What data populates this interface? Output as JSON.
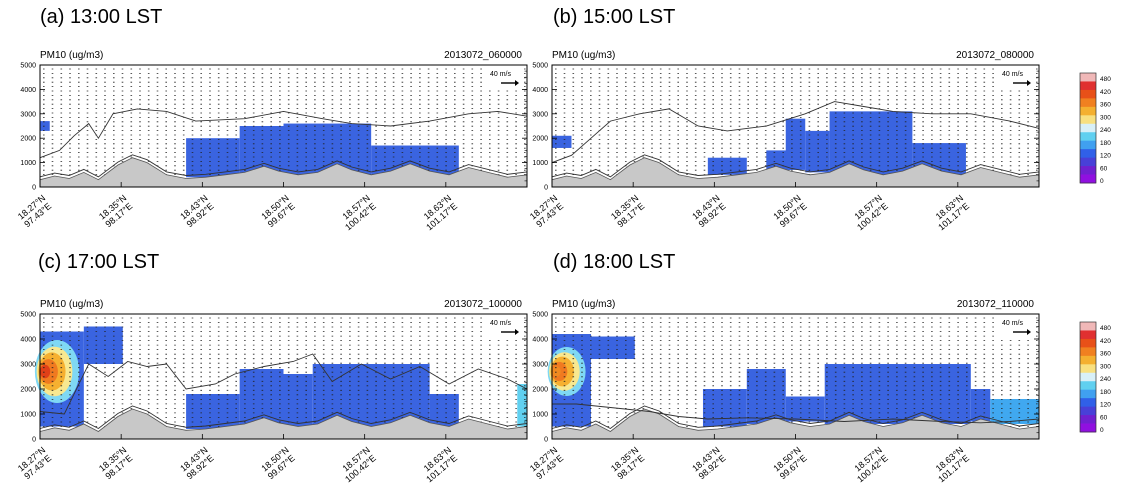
{
  "panels": [
    {
      "label": "(a) 13:00 LST",
      "var_label": "PM10 (ug/m3)",
      "timestamp": "2013072_060000",
      "ref_vector": "40 m/s"
    },
    {
      "label": "(b) 15:00 LST",
      "var_label": "PM10 (ug/m3)",
      "timestamp": "2013072_080000",
      "ref_vector": "40 m/s"
    },
    {
      "label": "(c) 17:00 LST",
      "var_label": "PM10 (ug/m3)",
      "timestamp": "2013072_100000",
      "ref_vector": "40 m/s"
    },
    {
      "label": "(d) 18:00 LST",
      "var_label": "PM10 (ug/m3)",
      "timestamp": "2013072_110000",
      "ref_vector": "40 m/s"
    }
  ],
  "colorbar": {
    "ticks": [
      "480",
      "420",
      "360",
      "300",
      "240",
      "180",
      "120",
      "60",
      "0"
    ],
    "colors": [
      "#f0b8b8",
      "#e03030",
      "#e85018",
      "#f08020",
      "#f4b030",
      "#f8e080",
      "#d8f0f8",
      "#60d0f0",
      "#40a0f0",
      "#3060e8",
      "#4840d8",
      "#7020d0",
      "#9010e0"
    ]
  },
  "chart_data": [
    {
      "type": "heatmap",
      "title": "(a) 13:00 LST",
      "variable": "PM10 (ug/m3)",
      "timestamp": "2013072_060000",
      "y_ticks": [
        0,
        1000,
        2000,
        3000,
        4000,
        5000
      ],
      "ylim": [
        0,
        5000
      ],
      "x_tick_labels": [
        [
          "18.27°N",
          "97.43°E"
        ],
        [
          "18.35°N",
          "98.17°E"
        ],
        [
          "18.43°N",
          "98.92°E"
        ],
        [
          "18.50°N",
          "99.67°E"
        ],
        [
          "18.57°N",
          "100.42°E"
        ],
        [
          "18.63°N",
          "101.17°E"
        ]
      ],
      "ref_vector": "40 m/s",
      "pm10_regions": [
        {
          "x": [
            0.0,
            0.02
          ],
          "y": [
            2300,
            2700
          ],
          "value": 100
        },
        {
          "x": [
            0.3,
            0.41
          ],
          "y": [
            400,
            2000
          ],
          "value": 100
        },
        {
          "x": [
            0.41,
            0.5
          ],
          "y": [
            500,
            2500
          ],
          "value": 100
        },
        {
          "x": [
            0.5,
            0.68
          ],
          "y": [
            400,
            2600
          ],
          "value": 100
        },
        {
          "x": [
            0.68,
            0.86
          ],
          "y": [
            400,
            1700
          ],
          "value": 100
        }
      ],
      "pbl_height": [
        [
          0.0,
          1200
        ],
        [
          0.04,
          1500
        ],
        [
          0.07,
          2100
        ],
        [
          0.1,
          2600
        ],
        [
          0.12,
          2000
        ],
        [
          0.15,
          3000
        ],
        [
          0.2,
          3200
        ],
        [
          0.26,
          3100
        ],
        [
          0.32,
          2700
        ],
        [
          0.42,
          2800
        ],
        [
          0.5,
          3100
        ],
        [
          0.58,
          2800
        ],
        [
          0.64,
          2600
        ],
        [
          0.72,
          2500
        ],
        [
          0.8,
          2700
        ],
        [
          0.88,
          3000
        ],
        [
          0.94,
          3100
        ],
        [
          1.0,
          2900
        ]
      ]
    },
    {
      "type": "heatmap",
      "title": "(b) 15:00 LST",
      "variable": "PM10 (ug/m3)",
      "timestamp": "2013072_080000",
      "y_ticks": [
        0,
        1000,
        2000,
        3000,
        4000,
        5000
      ],
      "ylim": [
        0,
        5000
      ],
      "x_tick_labels": [
        [
          "18.27°N",
          "97.43°E"
        ],
        [
          "18.35°N",
          "98.17°E"
        ],
        [
          "18.43°N",
          "98.92°E"
        ],
        [
          "18.50°N",
          "99.67°E"
        ],
        [
          "18.57°N",
          "100.42°E"
        ],
        [
          "18.63°N",
          "101.17°E"
        ]
      ],
      "ref_vector": "40 m/s",
      "pm10_regions": [
        {
          "x": [
            0.0,
            0.04
          ],
          "y": [
            1600,
            2100
          ],
          "value": 100
        },
        {
          "x": [
            0.32,
            0.4
          ],
          "y": [
            500,
            1200
          ],
          "value": 100
        },
        {
          "x": [
            0.44,
            0.49
          ],
          "y": [
            700,
            1500
          ],
          "value": 100
        },
        {
          "x": [
            0.48,
            0.52
          ],
          "y": [
            700,
            2800
          ],
          "value": 100
        },
        {
          "x": [
            0.52,
            0.57
          ],
          "y": [
            600,
            2300
          ],
          "value": 100
        },
        {
          "x": [
            0.57,
            0.74
          ],
          "y": [
            500,
            3100
          ],
          "value": 100
        },
        {
          "x": [
            0.74,
            0.85
          ],
          "y": [
            400,
            1800
          ],
          "value": 100
        }
      ],
      "pbl_height": [
        [
          0.0,
          1000
        ],
        [
          0.04,
          1300
        ],
        [
          0.08,
          2000
        ],
        [
          0.12,
          2700
        ],
        [
          0.18,
          3000
        ],
        [
          0.24,
          3200
        ],
        [
          0.3,
          2500
        ],
        [
          0.36,
          2300
        ],
        [
          0.44,
          2500
        ],
        [
          0.52,
          3000
        ],
        [
          0.58,
          3500
        ],
        [
          0.64,
          3300
        ],
        [
          0.7,
          3100
        ],
        [
          0.78,
          3000
        ],
        [
          0.86,
          3000
        ],
        [
          0.94,
          2700
        ],
        [
          1.0,
          2400
        ]
      ]
    },
    {
      "type": "heatmap",
      "title": "(c) 17:00 LST",
      "variable": "PM10 (ug/m3)",
      "timestamp": "2013072_100000",
      "y_ticks": [
        0,
        1000,
        2000,
        3000,
        4000,
        5000
      ],
      "ylim": [
        0,
        5000
      ],
      "x_tick_labels": [
        [
          "18.27°N",
          "97.43°E"
        ],
        [
          "18.35°N",
          "98.17°E"
        ],
        [
          "18.43°N",
          "98.92°E"
        ],
        [
          "18.50°N",
          "99.67°E"
        ],
        [
          "18.57°N",
          "100.42°E"
        ],
        [
          "18.63°N",
          "101.17°E"
        ]
      ],
      "ref_vector": "40 m/s",
      "pm10_regions": [
        {
          "x": [
            0.0,
            0.09
          ],
          "y": [
            500,
            4300
          ],
          "value": 120
        },
        {
          "x": [
            0.09,
            0.17
          ],
          "y": [
            3000,
            4500
          ],
          "value": 100
        },
        {
          "x": [
            0.3,
            0.41
          ],
          "y": [
            400,
            1800
          ],
          "value": 100
        },
        {
          "x": [
            0.41,
            0.5
          ],
          "y": [
            400,
            2800
          ],
          "value": 100
        },
        {
          "x": [
            0.5,
            0.56
          ],
          "y": [
            300,
            2600
          ],
          "value": 100
        },
        {
          "x": [
            0.56,
            0.8
          ],
          "y": [
            400,
            3000
          ],
          "value": 100
        },
        {
          "x": [
            0.8,
            0.86
          ],
          "y": [
            400,
            1800
          ],
          "value": 100
        },
        {
          "x": [
            0.98,
            1.0
          ],
          "y": [
            500,
            2200
          ],
          "value": 180
        }
      ],
      "pm10_hotspots": [
        {
          "x": [
            0.0,
            0.07
          ],
          "y": [
            1800,
            3600
          ],
          "value": 400
        }
      ],
      "pbl_height": [
        [
          0.0,
          1100
        ],
        [
          0.05,
          1000
        ],
        [
          0.1,
          3000
        ],
        [
          0.14,
          2500
        ],
        [
          0.18,
          3100
        ],
        [
          0.22,
          2900
        ],
        [
          0.26,
          3000
        ],
        [
          0.3,
          2000
        ],
        [
          0.36,
          2200
        ],
        [
          0.4,
          2600
        ],
        [
          0.46,
          2900
        ],
        [
          0.52,
          3100
        ],
        [
          0.56,
          3400
        ],
        [
          0.6,
          2300
        ],
        [
          0.66,
          3000
        ],
        [
          0.72,
          2400
        ],
        [
          0.78,
          2900
        ],
        [
          0.84,
          2200
        ],
        [
          0.9,
          2800
        ],
        [
          0.96,
          2400
        ],
        [
          1.0,
          2000
        ]
      ]
    },
    {
      "type": "heatmap",
      "title": "(d) 18:00 LST",
      "variable": "PM10 (ug/m3)",
      "timestamp": "2013072_110000",
      "y_ticks": [
        0,
        1000,
        2000,
        3000,
        4000,
        5000
      ],
      "ylim": [
        0,
        5000
      ],
      "x_tick_labels": [
        [
          "18.27°N",
          "97.43°E"
        ],
        [
          "18.35°N",
          "98.17°E"
        ],
        [
          "18.43°N",
          "98.92°E"
        ],
        [
          "18.50°N",
          "99.67°E"
        ],
        [
          "18.57°N",
          "100.42°E"
        ],
        [
          "18.63°N",
          "101.17°E"
        ]
      ],
      "ref_vector": "40 m/s",
      "pm10_regions": [
        {
          "x": [
            0.0,
            0.08
          ],
          "y": [
            500,
            4200
          ],
          "value": 120
        },
        {
          "x": [
            0.08,
            0.17
          ],
          "y": [
            3200,
            4100
          ],
          "value": 100
        },
        {
          "x": [
            0.31,
            0.4
          ],
          "y": [
            500,
            2000
          ],
          "value": 100
        },
        {
          "x": [
            0.4,
            0.48
          ],
          "y": [
            600,
            2800
          ],
          "value": 100
        },
        {
          "x": [
            0.48,
            0.56
          ],
          "y": [
            700,
            1700
          ],
          "value": 100
        },
        {
          "x": [
            0.56,
            0.86
          ],
          "y": [
            600,
            3000
          ],
          "value": 100
        },
        {
          "x": [
            0.86,
            0.9
          ],
          "y": [
            700,
            2000
          ],
          "value": 100
        },
        {
          "x": [
            0.9,
            1.0
          ],
          "y": [
            600,
            1600
          ],
          "value": 160
        }
      ],
      "pm10_hotspots": [
        {
          "x": [
            0.0,
            0.06
          ],
          "y": [
            2000,
            3400
          ],
          "value": 360
        }
      ],
      "pbl_height": [
        [
          0.0,
          1400
        ],
        [
          0.05,
          1400
        ],
        [
          0.1,
          1300
        ],
        [
          0.15,
          1200
        ],
        [
          0.2,
          1100
        ],
        [
          0.26,
          900
        ],
        [
          0.32,
          800
        ],
        [
          0.4,
          850
        ],
        [
          0.5,
          800
        ],
        [
          0.6,
          700
        ],
        [
          0.7,
          800
        ],
        [
          0.8,
          700
        ],
        [
          0.88,
          650
        ],
        [
          0.94,
          700
        ],
        [
          1.0,
          800
        ]
      ]
    }
  ]
}
